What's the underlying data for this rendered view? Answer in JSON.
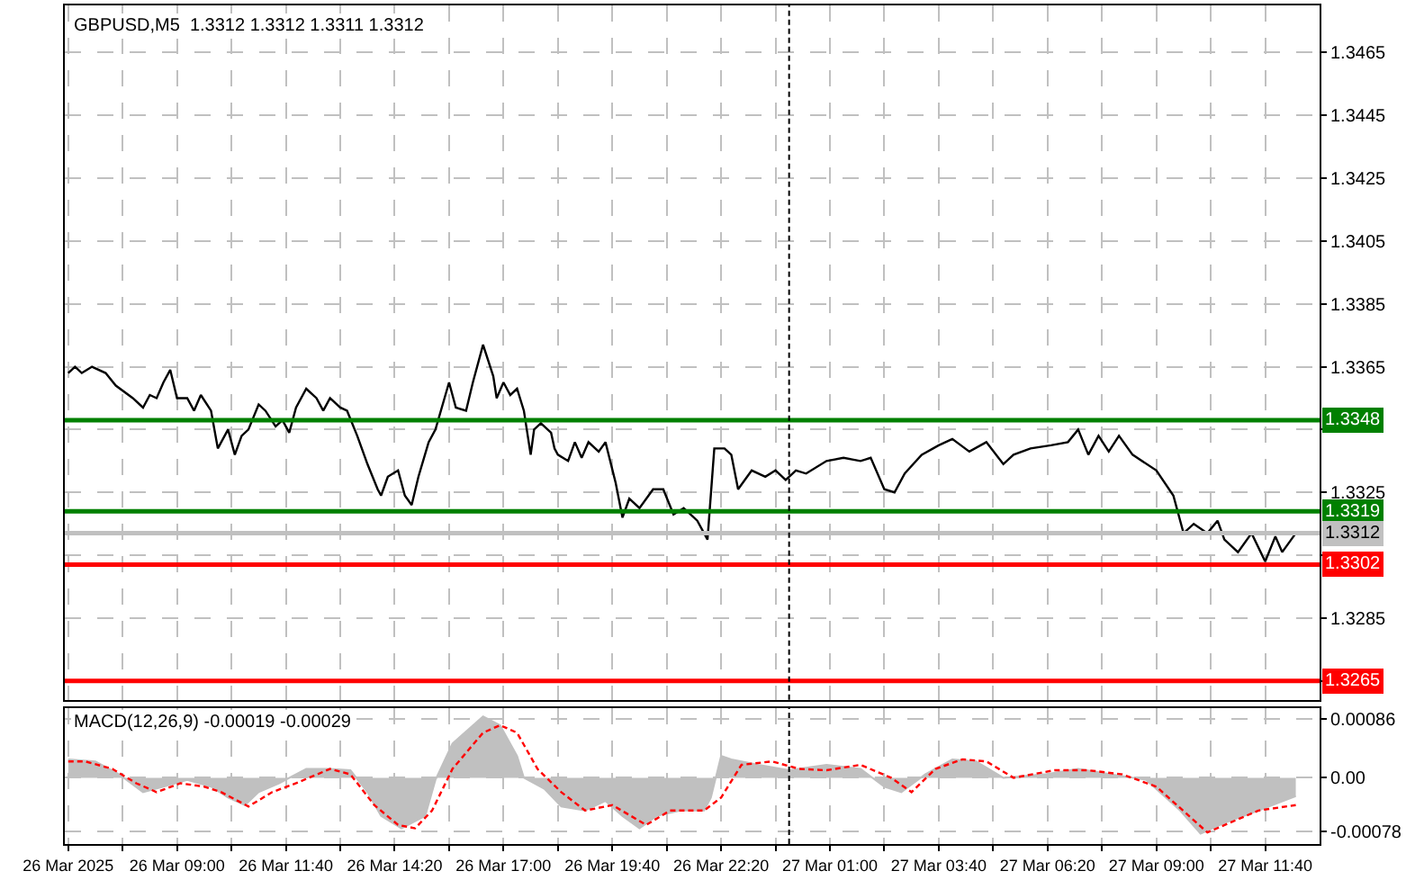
{
  "chart_data": [
    {
      "type": "line",
      "title": "GBPUSD,M5  1.3312 1.3312 1.3311 1.3312",
      "grid": true,
      "tick_labels": "y",
      "xlim": [
        "2025-03-26T06:15",
        "2025-03-27T13:00"
      ],
      "ylim": [
        1.3259,
        1.348
      ],
      "yticks": [
        1.3465,
        1.3445,
        1.3425,
        1.3405,
        1.3385,
        1.3365,
        {
          "value": 1.3345,
          "label": null
        },
        1.3325,
        {
          "value": 1.3305,
          "label": null
        },
        1.3285,
        {
          "value": 1.3265,
          "label": null
        }
      ],
      "xticks": [
        {
          "value": "2025-03-26T06:20",
          "label": null
        },
        {
          "value": "2025-03-26T07:40",
          "label": null
        },
        {
          "value": "2025-03-26T09:00",
          "label": null
        },
        {
          "value": "2025-03-26T10:20",
          "label": null
        },
        {
          "value": "2025-03-26T11:40",
          "label": null
        },
        {
          "value": "2025-03-26T13:00",
          "label": null
        },
        {
          "value": "2025-03-26T14:20",
          "label": null
        },
        {
          "value": "2025-03-26T15:40",
          "label": null
        },
        {
          "value": "2025-03-26T17:00",
          "label": null
        },
        {
          "value": "2025-03-26T18:20",
          "label": null
        },
        {
          "value": "2025-03-26T19:40",
          "label": null
        },
        {
          "value": "2025-03-26T21:00",
          "label": null
        },
        {
          "value": "2025-03-26T22:20",
          "label": null
        },
        {
          "value": "2025-03-26T23:40",
          "label": null
        },
        {
          "value": "2025-03-27T01:00",
          "label": null
        },
        {
          "value": "2025-03-27T02:20",
          "label": null
        },
        {
          "value": "2025-03-27T03:40",
          "label": null
        },
        {
          "value": "2025-03-27T05:00",
          "label": null
        },
        {
          "value": "2025-03-27T06:20",
          "label": null
        },
        {
          "value": "2025-03-27T07:40",
          "label": null
        },
        {
          "value": "2025-03-27T09:00",
          "label": null
        },
        {
          "value": "2025-03-27T10:20",
          "label": null
        },
        {
          "value": "2025-03-27T11:40",
          "label": null
        }
      ],
      "x": [
        "2025-03-26T06:20",
        "2025-03-26T06:30",
        "2025-03-26T06:40",
        "2025-03-26T06:55",
        "2025-03-26T07:15",
        "2025-03-26T07:30",
        "2025-03-26T07:55",
        "2025-03-26T08:10",
        "2025-03-26T08:20",
        "2025-03-26T08:30",
        "2025-03-26T08:40",
        "2025-03-26T08:50",
        "2025-03-26T09:00",
        "2025-03-26T09:15",
        "2025-03-26T09:25",
        "2025-03-26T09:35",
        "2025-03-26T09:50",
        "2025-03-26T10:00",
        "2025-03-26T10:15",
        "2025-03-26T10:25",
        "2025-03-26T10:35",
        "2025-03-26T10:45",
        "2025-03-26T11:00",
        "2025-03-26T11:10",
        "2025-03-26T11:25",
        "2025-03-26T11:35",
        "2025-03-26T11:45",
        "2025-03-26T11:55",
        "2025-03-26T12:10",
        "2025-03-26T12:25",
        "2025-03-26T12:35",
        "2025-03-26T12:45",
        "2025-03-26T13:00",
        "2025-03-26T13:10",
        "2025-03-26T13:25",
        "2025-03-26T13:40",
        "2025-03-26T13:55",
        "2025-03-26T14:00",
        "2025-03-26T14:10",
        "2025-03-26T14:25",
        "2025-03-26T14:35",
        "2025-03-26T14:45",
        "2025-03-26T14:55",
        "2025-03-26T15:10",
        "2025-03-26T15:20",
        "2025-03-26T15:40",
        "2025-03-26T15:50",
        "2025-03-26T16:05",
        "2025-03-26T16:15",
        "2025-03-26T16:30",
        "2025-03-26T16:45",
        "2025-03-26T16:50",
        "2025-03-26T17:00",
        "2025-03-26T17:10",
        "2025-03-26T17:20",
        "2025-03-26T17:30",
        "2025-03-26T17:40",
        "2025-03-26T17:45",
        "2025-03-26T17:55",
        "2025-03-26T18:10",
        "2025-03-26T18:15",
        "2025-03-26T18:20",
        "2025-03-26T18:35",
        "2025-03-26T18:45",
        "2025-03-26T18:55",
        "2025-03-26T19:05",
        "2025-03-26T19:20",
        "2025-03-26T19:30",
        "2025-03-26T19:45",
        "2025-03-26T19:55",
        "2025-03-26T20:05",
        "2025-03-26T20:20",
        "2025-03-26T20:40",
        "2025-03-26T20:55",
        "2025-03-26T21:10",
        "2025-03-26T21:25",
        "2025-03-26T21:45",
        "2025-03-26T22:00",
        "2025-03-26T22:10",
        "2025-03-26T22:25",
        "2025-03-26T22:35",
        "2025-03-26T22:45",
        "2025-03-26T23:05",
        "2025-03-26T23:25",
        "2025-03-26T23:40",
        "2025-03-26T23:55",
        "2025-03-27T00:10",
        "2025-03-27T00:25",
        "2025-03-27T00:55",
        "2025-03-27T01:20",
        "2025-03-27T01:45",
        "2025-03-27T02:00",
        "2025-03-27T02:20",
        "2025-03-27T02:35",
        "2025-03-27T02:50",
        "2025-03-27T03:15",
        "2025-03-27T03:40",
        "2025-03-27T04:00",
        "2025-03-27T04:25",
        "2025-03-27T04:50",
        "2025-03-27T05:15",
        "2025-03-27T05:30",
        "2025-03-27T05:55",
        "2025-03-27T06:25",
        "2025-03-27T06:50",
        "2025-03-27T07:05",
        "2025-03-27T07:20",
        "2025-03-27T07:35",
        "2025-03-27T07:50",
        "2025-03-27T08:05",
        "2025-03-27T08:25",
        "2025-03-27T09:00",
        "2025-03-27T09:25",
        "2025-03-27T09:40",
        "2025-03-27T09:55",
        "2025-03-27T10:15",
        "2025-03-27T10:30",
        "2025-03-27T10:40",
        "2025-03-27T11:00",
        "2025-03-27T11:20",
        "2025-03-27T11:40",
        "2025-03-27T11:55",
        "2025-03-27T12:05",
        "2025-03-27T12:25"
      ],
      "series": [
        {
          "color": "#000000",
          "values": [
            1.3363,
            1.3365,
            1.3363,
            1.3365,
            1.3363,
            1.3359,
            1.3355,
            1.3352,
            1.3356,
            1.3355,
            1.336,
            1.3364,
            1.3355,
            1.3355,
            1.3351,
            1.3356,
            1.3351,
            1.3339,
            1.3345,
            1.3337,
            1.3343,
            1.3345,
            1.3353,
            1.3351,
            1.3346,
            1.3348,
            1.3344,
            1.3352,
            1.3358,
            1.3355,
            1.3351,
            1.3355,
            1.3352,
            1.3351,
            1.3343,
            1.3334,
            1.3326,
            1.3324,
            1.333,
            1.3332,
            1.3324,
            1.3321,
            1.333,
            1.3341,
            1.3345,
            1.336,
            1.3352,
            1.3351,
            1.336,
            1.3372,
            1.3362,
            1.3355,
            1.336,
            1.3356,
            1.3358,
            1.3351,
            1.3337,
            1.3345,
            1.3347,
            1.3344,
            1.3339,
            1.3337,
            1.3335,
            1.3341,
            1.3336,
            1.3341,
            1.3338,
            1.3341,
            1.3328,
            1.3317,
            1.3323,
            1.332,
            1.3326,
            1.3326,
            1.3318,
            1.332,
            1.3316,
            1.331,
            1.3339,
            1.3339,
            1.3337,
            1.3326,
            1.3332,
            1.333,
            1.3332,
            1.3329,
            1.3332,
            1.3331,
            1.3335,
            1.3336,
            1.3335,
            1.3336,
            1.3326,
            1.3325,
            1.3331,
            1.3337,
            1.334,
            1.3342,
            1.3338,
            1.3341,
            1.3334,
            1.3337,
            1.3339,
            1.334,
            1.3341,
            1.3345,
            1.3337,
            1.3343,
            1.3338,
            1.3343,
            1.3337,
            1.3332,
            1.3324,
            1.3312,
            1.3315,
            1.3312,
            1.3316,
            1.331,
            1.3306,
            1.3312,
            1.3303,
            1.3311,
            1.3306,
            1.3312
          ]
        }
      ],
      "ref_lines": [
        {
          "axis": "y",
          "value": 1.3348,
          "label": "1.3348",
          "color": "#008000"
        },
        {
          "axis": "y",
          "value": 1.3319,
          "label": "1.3319",
          "color": "#008000"
        },
        {
          "axis": "y",
          "value": 1.3312,
          "label": "1.3312",
          "color": "#c0c0c0"
        },
        {
          "axis": "y",
          "value": 1.3302,
          "label": "1.3302",
          "color": "#ff0000"
        },
        {
          "axis": "y",
          "value": 1.3265,
          "label": "1.3265",
          "color": "#ff0000"
        },
        {
          "axis": "x",
          "value": "2025-03-27T00:00",
          "color": "#000000",
          "line_style": "dashed"
        }
      ]
    },
    {
      "type": "area",
      "title": "MACD(12,26,9) -0.00019 -0.00029",
      "grid": true,
      "xlim": [
        "2025-03-26T06:15",
        "2025-03-27T13:00"
      ],
      "ylim": [
        -0.00097,
        0.00102
      ],
      "yticks": [
        {
          "value": 0.00086,
          "label": "0.00086"
        },
        {
          "value": 0,
          "label": "0.00"
        },
        {
          "value": -0.00078,
          "label": "-0.00078"
        }
      ],
      "xticks": [
        {
          "value": "2025-03-26T06:20",
          "label": "26 Mar 2025"
        },
        {
          "value": "2025-03-26T07:40",
          "label": null
        },
        {
          "value": "2025-03-26T09:00",
          "label": "26 Mar 09:00"
        },
        {
          "value": "2025-03-26T10:20",
          "label": null
        },
        {
          "value": "2025-03-26T11:40",
          "label": "26 Mar 11:40"
        },
        {
          "value": "2025-03-26T13:00",
          "label": null
        },
        {
          "value": "2025-03-26T14:20",
          "label": "26 Mar 14:20"
        },
        {
          "value": "2025-03-26T15:40",
          "label": null
        },
        {
          "value": "2025-03-26T17:00",
          "label": "26 Mar 17:00"
        },
        {
          "value": "2025-03-26T18:20",
          "label": null
        },
        {
          "value": "2025-03-26T19:40",
          "label": "26 Mar 19:40"
        },
        {
          "value": "2025-03-26T21:00",
          "label": null
        },
        {
          "value": "2025-03-26T22:20",
          "label": "26 Mar 22:20"
        },
        {
          "value": "2025-03-26T23:40",
          "label": null
        },
        {
          "value": "2025-03-27T01:00",
          "label": "27 Mar 01:00"
        },
        {
          "value": "2025-03-27T02:20",
          "label": null
        },
        {
          "value": "2025-03-27T03:40",
          "label": "27 Mar 03:40"
        },
        {
          "value": "2025-03-27T05:00",
          "label": null
        },
        {
          "value": "2025-03-27T06:20",
          "label": "27 Mar 06:20"
        },
        {
          "value": "2025-03-27T07:40",
          "label": null
        },
        {
          "value": "2025-03-27T09:00",
          "label": "27 Mar 09:00"
        },
        {
          "value": "2025-03-27T10:20",
          "label": null
        },
        {
          "value": "2025-03-27T11:40",
          "label": "27 Mar 11:40"
        }
      ],
      "series": [
        {
          "type": "area",
          "color": "#c0c0c0",
          "x": [
            "2025-03-26T06:20",
            "2025-03-26T07:00",
            "2025-03-26T07:35",
            "2025-03-26T08:10",
            "2025-03-26T08:40",
            "2025-03-26T09:15",
            "2025-03-26T09:50",
            "2025-03-26T10:15",
            "2025-03-26T10:40",
            "2025-03-26T11:00",
            "2025-03-26T11:30",
            "2025-03-26T12:10",
            "2025-03-26T12:45",
            "2025-03-26T13:15",
            "2025-03-26T13:40",
            "2025-03-26T14:00",
            "2025-03-26T14:30",
            "2025-03-26T15:05",
            "2025-03-26T15:20",
            "2025-03-26T15:45",
            "2025-03-26T16:30",
            "2025-03-26T16:55",
            "2025-03-26T17:20",
            "2025-03-26T17:30",
            "2025-03-26T18:00",
            "2025-03-26T18:25",
            "2025-03-26T19:00",
            "2025-03-26T19:30",
            "2025-03-26T19:55",
            "2025-03-26T20:20",
            "2025-03-26T20:45",
            "2025-03-26T21:20",
            "2025-03-26T21:55",
            "2025-03-26T22:05",
            "2025-03-26T22:20",
            "2025-03-26T22:35",
            "2025-03-26T23:15",
            "2025-03-27T00:00",
            "2025-03-27T00:55",
            "2025-03-27T01:45",
            "2025-03-27T02:20",
            "2025-03-27T02:45",
            "2025-03-27T03:20",
            "2025-03-27T04:00",
            "2025-03-27T04:35",
            "2025-03-27T05:15",
            "2025-03-27T06:15",
            "2025-03-27T07:05",
            "2025-03-27T07:55",
            "2025-03-27T08:45",
            "2025-03-27T09:35",
            "2025-03-27T10:05",
            "2025-03-27T10:40",
            "2025-03-27T11:30",
            "2025-03-27T12:25"
          ],
          "values": [
            0.00027,
            0.00024,
            5e-05,
            -0.00021,
            -0.00013,
            -3e-05,
            -0.00013,
            -0.00029,
            -0.0004,
            -0.00021,
            -8e-05,
            0.00013,
            0.00013,
            0.00011,
            -0.00021,
            -0.00056,
            -0.00074,
            -0.00056,
            -3e-05,
            0.0005,
            0.0009,
            0.00077,
            0.00032,
            0,
            -0.00016,
            -0.00042,
            -0.00048,
            -0.00034,
            -0.00056,
            -0.00074,
            -0.00056,
            -0.00048,
            -0.00048,
            -0.00029,
            0.00032,
            0.00027,
            0.00019,
            0.00011,
            0.00019,
            0.00013,
            -0.00013,
            -0.00021,
            5e-05,
            0.00027,
            0.00024,
            0,
            5e-05,
            0.00013,
            5e-05,
            -3e-05,
            -0.00048,
            -0.00082,
            -0.00066,
            -0.00048,
            -0.00027
          ]
        },
        {
          "type": "line",
          "color": "#ff0000",
          "line_style": "dashed",
          "x": [
            "2025-03-26T06:20",
            "2025-03-26T06:45",
            "2025-03-26T07:25",
            "2025-03-26T08:00",
            "2025-03-26T08:30",
            "2025-03-26T09:05",
            "2025-03-26T09:40",
            "2025-03-26T10:05",
            "2025-03-26T10:45",
            "2025-03-26T11:20",
            "2025-03-26T11:55",
            "2025-03-26T12:45",
            "2025-03-26T13:15",
            "2025-03-26T13:50",
            "2025-03-26T14:25",
            "2025-03-26T14:50",
            "2025-03-26T15:15",
            "2025-03-26T15:45",
            "2025-03-26T16:30",
            "2025-03-26T16:55",
            "2025-03-26T17:20",
            "2025-03-26T17:50",
            "2025-03-26T18:25",
            "2025-03-26T19:00",
            "2025-03-26T19:40",
            "2025-03-26T20:30",
            "2025-03-26T21:05",
            "2025-03-26T21:55",
            "2025-03-26T22:20",
            "2025-03-26T22:50",
            "2025-03-26T23:35",
            "2025-03-27T00:15",
            "2025-03-27T00:55",
            "2025-03-27T01:45",
            "2025-03-27T02:30",
            "2025-03-27T03:00",
            "2025-03-27T03:35",
            "2025-03-27T04:15",
            "2025-03-27T04:50",
            "2025-03-27T05:30",
            "2025-03-27T06:30",
            "2025-03-27T07:20",
            "2025-03-27T08:10",
            "2025-03-27T09:00",
            "2025-03-27T10:15",
            "2025-03-27T11:30",
            "2025-03-27T12:25"
          ],
          "values": [
            0.00024,
            0.00024,
            0.00013,
            -8e-05,
            -0.00021,
            -8e-05,
            -0.00013,
            -0.00021,
            -0.00042,
            -0.00021,
            -8e-05,
            0.00013,
            5e-05,
            -0.0004,
            -0.00069,
            -0.00074,
            -0.00048,
            0.00013,
            0.00066,
            0.00077,
            0.00066,
            0.00013,
            -0.00021,
            -0.00048,
            -0.0004,
            -0.00069,
            -0.00048,
            -0.00048,
            -0.00029,
            0.00019,
            0.00024,
            0.00013,
            0.00011,
            0.00019,
            0,
            -0.00021,
            0.00013,
            0.00027,
            0.00024,
            0,
            0.00011,
            0.00011,
            5e-05,
            -0.00013,
            -0.0008,
            -0.00048,
            -0.0004
          ]
        }
      ],
      "ref_lines": [
        {
          "axis": "x",
          "value": "2025-03-27T00:00",
          "color": "#000000",
          "line_style": "dashed"
        }
      ]
    }
  ]
}
